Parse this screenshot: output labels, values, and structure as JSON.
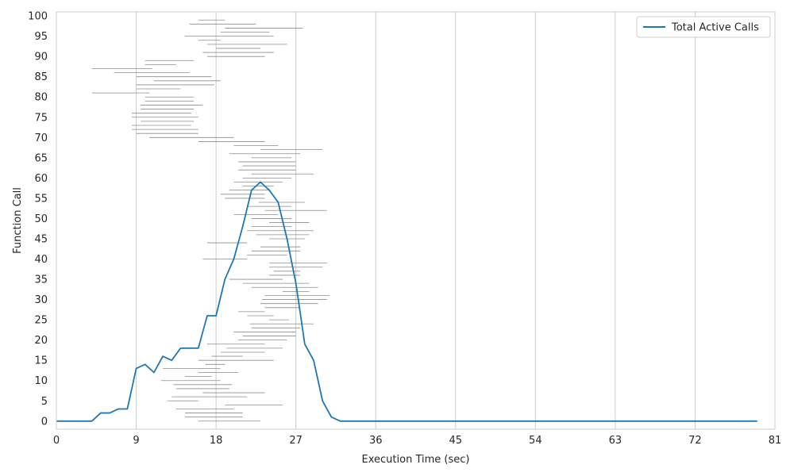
{
  "chart_data": {
    "type": "line",
    "xlabel": "Execution Time (sec)",
    "ylabel": "Function Call",
    "xlim": [
      0,
      81
    ],
    "ylim": [
      -2,
      101
    ],
    "x_ticks": [
      0,
      9,
      18,
      27,
      36,
      45,
      54,
      63,
      72,
      81
    ],
    "y_ticks": [
      0,
      5,
      10,
      15,
      20,
      25,
      30,
      35,
      40,
      45,
      50,
      55,
      60,
      65,
      70,
      75,
      80,
      85,
      90,
      95,
      100
    ],
    "grid": "x",
    "legend_position": "top-right",
    "colors": {
      "line": "#1f77b4",
      "segments": "#8c8c8c",
      "grid": "#cccccc",
      "frame": "#cccccc"
    },
    "series": [
      {
        "name": "Total Active Calls",
        "x": [
          0,
          1,
          2,
          3,
          4,
          5,
          6,
          7,
          8,
          9,
          10,
          11,
          12,
          13,
          14,
          15,
          16,
          17,
          18,
          19,
          20,
          21,
          22,
          23,
          24,
          25,
          26,
          27,
          28,
          29,
          30,
          31,
          32,
          33,
          34,
          35,
          36,
          37,
          38,
          39,
          40,
          41,
          42,
          43,
          44,
          45,
          46,
          47,
          48,
          49,
          50,
          51,
          52,
          53,
          54,
          55,
          56,
          57,
          58,
          59,
          60,
          61,
          62,
          63,
          64,
          65,
          66,
          67,
          68,
          69,
          70,
          71,
          72,
          73,
          74,
          75,
          76,
          77,
          78,
          79
        ],
        "y": [
          0,
          0,
          0,
          0,
          0,
          2,
          2,
          3,
          3,
          13,
          14,
          12,
          16,
          15,
          18,
          18,
          18,
          26,
          26,
          35,
          40,
          48,
          57,
          59,
          57,
          54,
          45,
          34,
          19,
          15,
          5,
          1,
          0,
          0,
          0,
          0,
          0,
          0,
          0,
          0,
          0,
          0,
          0,
          0,
          0,
          0,
          0,
          0,
          0,
          0,
          0,
          0,
          0,
          0,
          0,
          0,
          0,
          0,
          0,
          0,
          0,
          0,
          0,
          0,
          0,
          0,
          0,
          0,
          0,
          0,
          0,
          0,
          0,
          0,
          0,
          0,
          0,
          0,
          0,
          0
        ]
      }
    ],
    "call_intervals": [
      [
        16,
        23
      ],
      [
        14.5,
        21
      ],
      [
        14.5,
        21
      ],
      [
        13.5,
        20
      ],
      [
        19,
        25.5
      ],
      [
        12.5,
        16
      ],
      [
        13,
        21.5
      ],
      [
        16.5,
        23.5
      ],
      [
        13.5,
        19.5
      ],
      [
        13.2,
        19.8
      ],
      [
        11.8,
        18.5
      ],
      [
        14.5,
        17.5
      ],
      [
        16,
        20.5
      ],
      [
        12,
        18.5
      ],
      [
        16.8,
        19
      ],
      [
        16,
        24.5
      ],
      [
        17.5,
        21
      ],
      [
        18.5,
        23.5
      ],
      [
        19.2,
        25.5
      ],
      [
        17,
        23.5
      ],
      [
        20.5,
        26
      ],
      [
        21,
        27
      ],
      [
        20,
        27
      ],
      [
        22,
        27.5
      ],
      [
        21.8,
        29
      ],
      [
        24,
        26.2
      ],
      [
        21.5,
        24.5
      ],
      [
        20.5,
        23.5
      ],
      [
        23.5,
        27.5
      ],
      [
        23,
        29.5
      ],
      [
        23.2,
        30.5
      ],
      [
        23.5,
        30.8
      ],
      [
        25.5,
        28.5
      ],
      [
        22,
        29.5
      ],
      [
        21,
        28.5
      ],
      [
        19.5,
        25.5
      ],
      [
        24,
        27.5
      ],
      [
        24.5,
        27.5
      ],
      [
        24,
        30
      ],
      [
        24,
        30.5
      ],
      [
        16.5,
        21.5
      ],
      [
        21.5,
        26
      ],
      [
        22,
        27.5
      ],
      [
        23,
        27.5
      ],
      [
        17,
        21.5
      ],
      [
        24,
        28
      ],
      [
        22.5,
        28.5
      ],
      [
        21.5,
        29
      ],
      [
        22,
        26.5
      ],
      [
        24,
        28.5
      ],
      [
        22,
        26.5
      ],
      [
        20,
        25
      ],
      [
        23.5,
        30.5
      ],
      [
        21.5,
        26.5
      ],
      [
        22.8,
        28
      ],
      [
        19,
        23.5
      ],
      [
        18.5,
        23.5
      ],
      [
        19.5,
        24
      ],
      [
        21,
        24.5
      ],
      [
        20,
        25.5
      ],
      [
        21,
        26.5
      ],
      [
        22,
        29
      ],
      [
        20.5,
        27
      ],
      [
        21,
        27
      ],
      [
        20.5,
        27
      ],
      [
        22,
        26.5
      ],
      [
        19.5,
        27.5
      ],
      [
        23,
        30
      ],
      [
        20,
        25
      ],
      [
        16,
        23.5
      ],
      [
        10.5,
        20
      ],
      [
        9,
        16
      ],
      [
        8.5,
        16
      ],
      [
        8.5,
        15.2
      ],
      [
        9.5,
        15.5
      ],
      [
        8.5,
        16
      ],
      [
        8.5,
        15.2
      ],
      [
        9.5,
        15.5
      ],
      [
        9.5,
        16.5
      ],
      [
        10,
        15.5
      ],
      [
        10,
        15.5
      ],
      [
        4,
        10.5
      ],
      [
        9,
        14
      ],
      [
        9,
        17.8
      ],
      [
        11,
        18.5
      ],
      [
        9,
        17.5
      ],
      [
        6.5,
        15
      ],
      [
        4,
        10.8
      ],
      [
        10,
        13.5
      ],
      [
        10,
        15.5
      ],
      [
        17,
        23.5
      ],
      [
        16.5,
        24.5
      ],
      [
        18,
        23
      ],
      [
        17,
        26
      ],
      [
        16,
        18.5
      ],
      [
        14.5,
        24.5
      ],
      [
        18.5,
        24
      ],
      [
        19,
        27.8
      ],
      [
        15,
        22.5
      ],
      [
        16,
        19
      ]
    ]
  }
}
